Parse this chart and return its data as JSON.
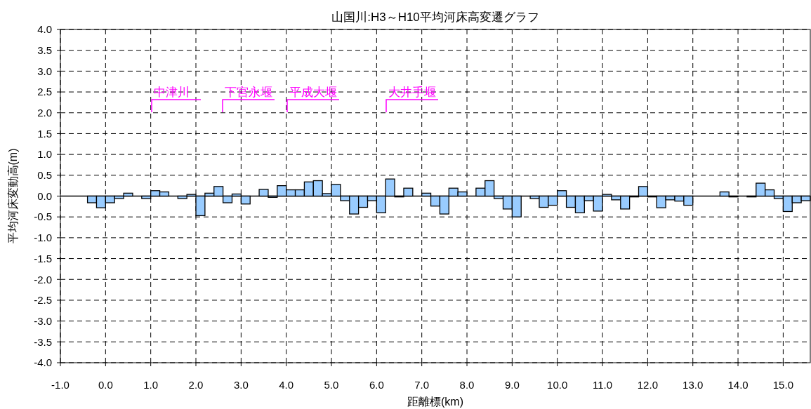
{
  "chart_data": {
    "type": "bar",
    "title": "山国川:H3～H10平均河床高変遷グラフ",
    "xlabel": "距離標(km)",
    "ylabel": "平均河床変動高(m)",
    "x": [
      -0.3,
      -0.1,
      0.1,
      0.3,
      0.5,
      0.9,
      1.1,
      1.3,
      1.7,
      1.9,
      2.1,
      2.3,
      2.5,
      2.7,
      2.9,
      3.1,
      3.5,
      3.7,
      3.9,
      4.1,
      4.3,
      4.5,
      4.7,
      4.9,
      5.1,
      5.3,
      5.5,
      5.7,
      5.9,
      6.1,
      6.3,
      6.5,
      6.7,
      7.1,
      7.3,
      7.5,
      7.7,
      7.9,
      8.3,
      8.5,
      8.7,
      8.9,
      9.1,
      9.5,
      9.7,
      9.9,
      10.1,
      10.3,
      10.5,
      10.7,
      10.9,
      11.1,
      11.3,
      11.5,
      11.7,
      11.9,
      12.1,
      12.3,
      12.5,
      12.7,
      12.9,
      13.7,
      13.9,
      14.3,
      14.5,
      14.7,
      14.9,
      15.1,
      15.3,
      15.5
    ],
    "values": [
      -0.16,
      -0.28,
      -0.16,
      -0.06,
      0.07,
      -0.06,
      0.13,
      0.1,
      -0.06,
      0.04,
      -0.47,
      0.07,
      0.23,
      -0.16,
      0.05,
      -0.19,
      0.16,
      -0.03,
      0.25,
      0.15,
      0.15,
      0.34,
      0.37,
      0.06,
      0.28,
      -0.11,
      -0.43,
      -0.27,
      -0.11,
      -0.4,
      0.41,
      -0.02,
      0.19,
      0.07,
      -0.24,
      -0.43,
      0.19,
      0.1,
      0.19,
      0.37,
      -0.06,
      -0.31,
      -0.5,
      -0.06,
      -0.27,
      -0.22,
      0.13,
      -0.27,
      -0.4,
      -0.11,
      -0.36,
      0.04,
      -0.09,
      -0.31,
      -0.02,
      0.23,
      -0.02,
      -0.28,
      -0.09,
      -0.12,
      -0.22,
      0.1,
      -0.02,
      -0.02,
      0.31,
      0.15,
      -0.06,
      -0.37,
      -0.16,
      -0.11
    ],
    "color": "#99ccff",
    "xlim": [
      -1,
      15.6
    ],
    "ylim": [
      -4,
      4
    ],
    "xticks": [
      {
        "value": -1,
        "label": "-1.0"
      },
      {
        "value": 0,
        "label": "0.0"
      },
      {
        "value": 1,
        "label": "1.0"
      },
      {
        "value": 2,
        "label": "2.0"
      },
      {
        "value": 3,
        "label": "3.0"
      },
      {
        "value": 4,
        "label": "4.0"
      },
      {
        "value": 5,
        "label": "5.0"
      },
      {
        "value": 6,
        "label": "6.0"
      },
      {
        "value": 7,
        "label": "7.0"
      },
      {
        "value": 8,
        "label": "8.0"
      },
      {
        "value": 9,
        "label": "9.0"
      },
      {
        "value": 10,
        "label": "10.0"
      },
      {
        "value": 11,
        "label": "11.0"
      },
      {
        "value": 12,
        "label": "12.0"
      },
      {
        "value": 13,
        "label": "13.0"
      },
      {
        "value": 14,
        "label": "14.0"
      },
      {
        "value": 15,
        "label": "15.0"
      }
    ],
    "yticks": [
      {
        "value": -4,
        "label": "-4.0"
      },
      {
        "value": -3.5,
        "label": "-3.5"
      },
      {
        "value": -3,
        "label": "-3.0"
      },
      {
        "value": -2.5,
        "label": "-2.5"
      },
      {
        "value": -2,
        "label": "-2.0"
      },
      {
        "value": -1.5,
        "label": "-1.5"
      },
      {
        "value": -1,
        "label": "-1.0"
      },
      {
        "value": -0.5,
        "label": "-0.5"
      },
      {
        "value": 0,
        "label": "0.0"
      },
      {
        "value": 0.5,
        "label": "0.5"
      },
      {
        "value": 1,
        "label": "1.0"
      },
      {
        "value": 1.5,
        "label": "1.5"
      },
      {
        "value": 2,
        "label": "2.0"
      },
      {
        "value": 2.5,
        "label": "2.5"
      },
      {
        "value": 3,
        "label": "3.0"
      },
      {
        "value": 3.5,
        "label": "3.5"
      },
      {
        "value": 4,
        "label": "4.0"
      }
    ],
    "grid": true,
    "annotations": [
      "中津川",
      "下宮永堰",
      "平成大堰",
      "大井手堰"
    ]
  }
}
